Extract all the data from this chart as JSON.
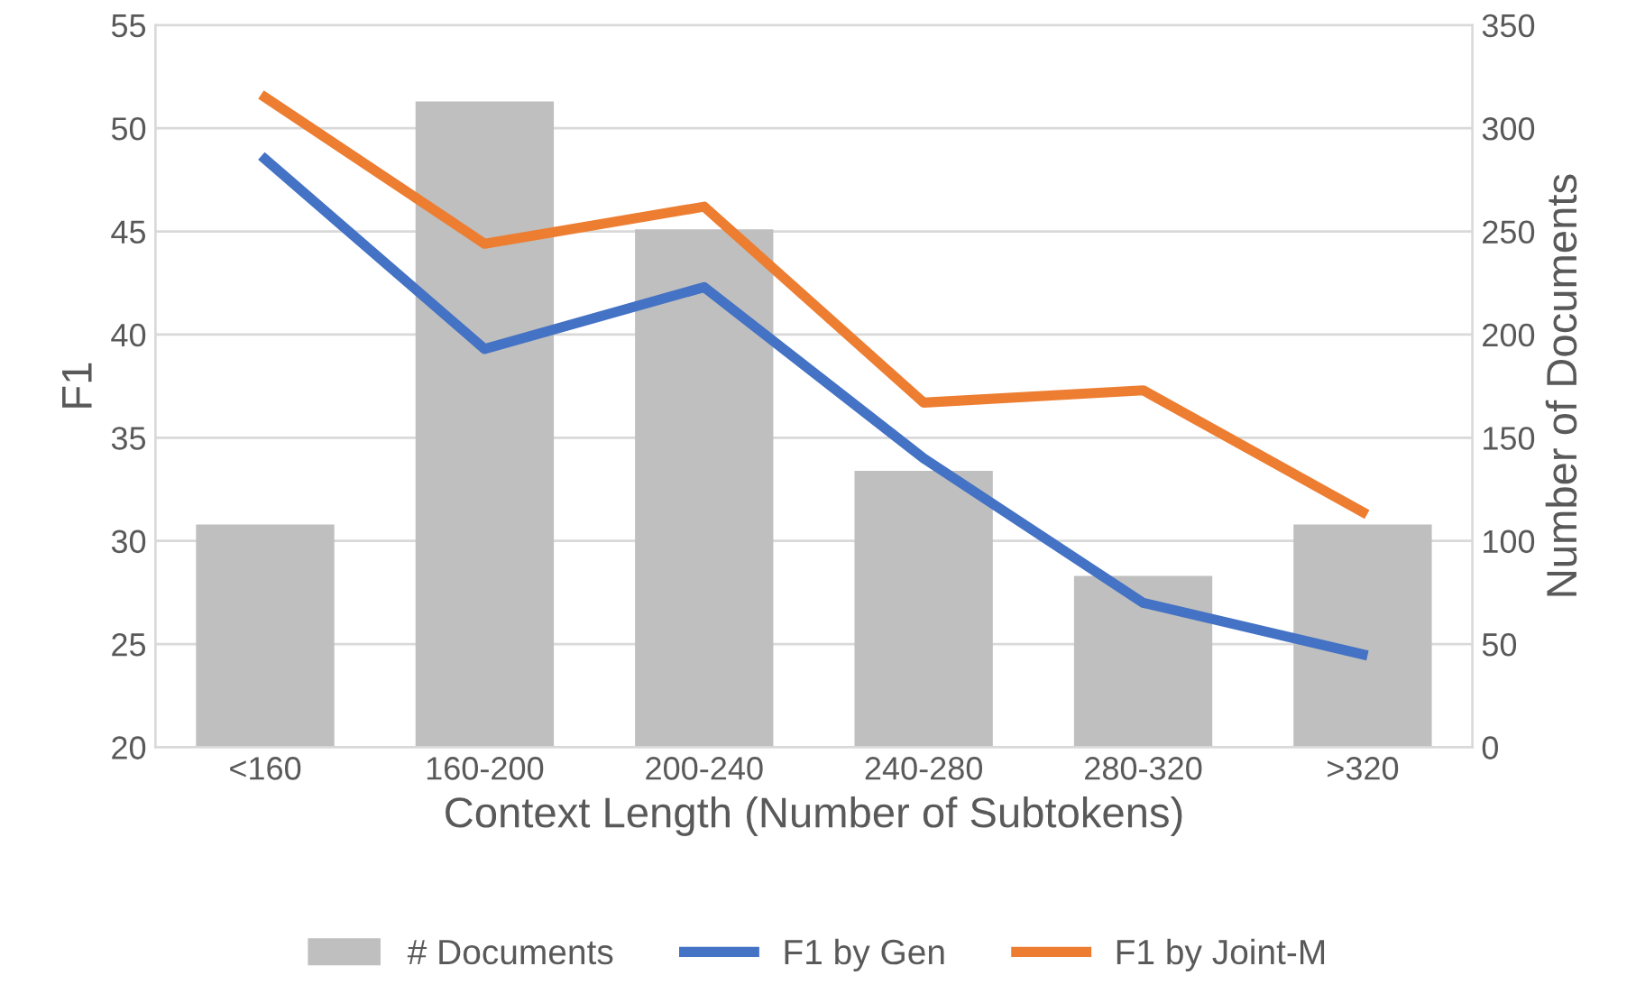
{
  "chart_data": {
    "type": "bar",
    "xlabel": "Context Length (Number of Subtokens)",
    "ylabel": "F1",
    "y2label": "Number of Documents",
    "categories": [
      "<160",
      "160-200",
      "200-240",
      "240-280",
      "280-320",
      ">320"
    ],
    "series": [
      {
        "name": "# Documents",
        "axis": "y2",
        "color": "#bfbfbf",
        "values": [
          108,
          313,
          251,
          134,
          83,
          108
        ]
      },
      {
        "name": "F1 by Gen",
        "type": "line",
        "color": "#4472c4",
        "values": [
          48.5,
          39.3,
          42.3,
          34.0,
          27.0,
          24.5
        ]
      },
      {
        "name": "F1 by Joint-M",
        "type": "line",
        "color": "#ed7d31",
        "values": [
          51.5,
          44.4,
          46.2,
          36.7,
          37.3,
          31.4
        ]
      }
    ],
    "ylim": [
      20,
      55
    ],
    "yticks": [
      20,
      25,
      30,
      35,
      40,
      45,
      50,
      55
    ],
    "y2lim": [
      0,
      350
    ],
    "y2ticks": [
      0,
      50,
      100,
      150,
      200,
      250,
      300,
      350
    ],
    "grid": "y",
    "legend": "bottom",
    "marker": "none",
    "line_style": "solid"
  }
}
